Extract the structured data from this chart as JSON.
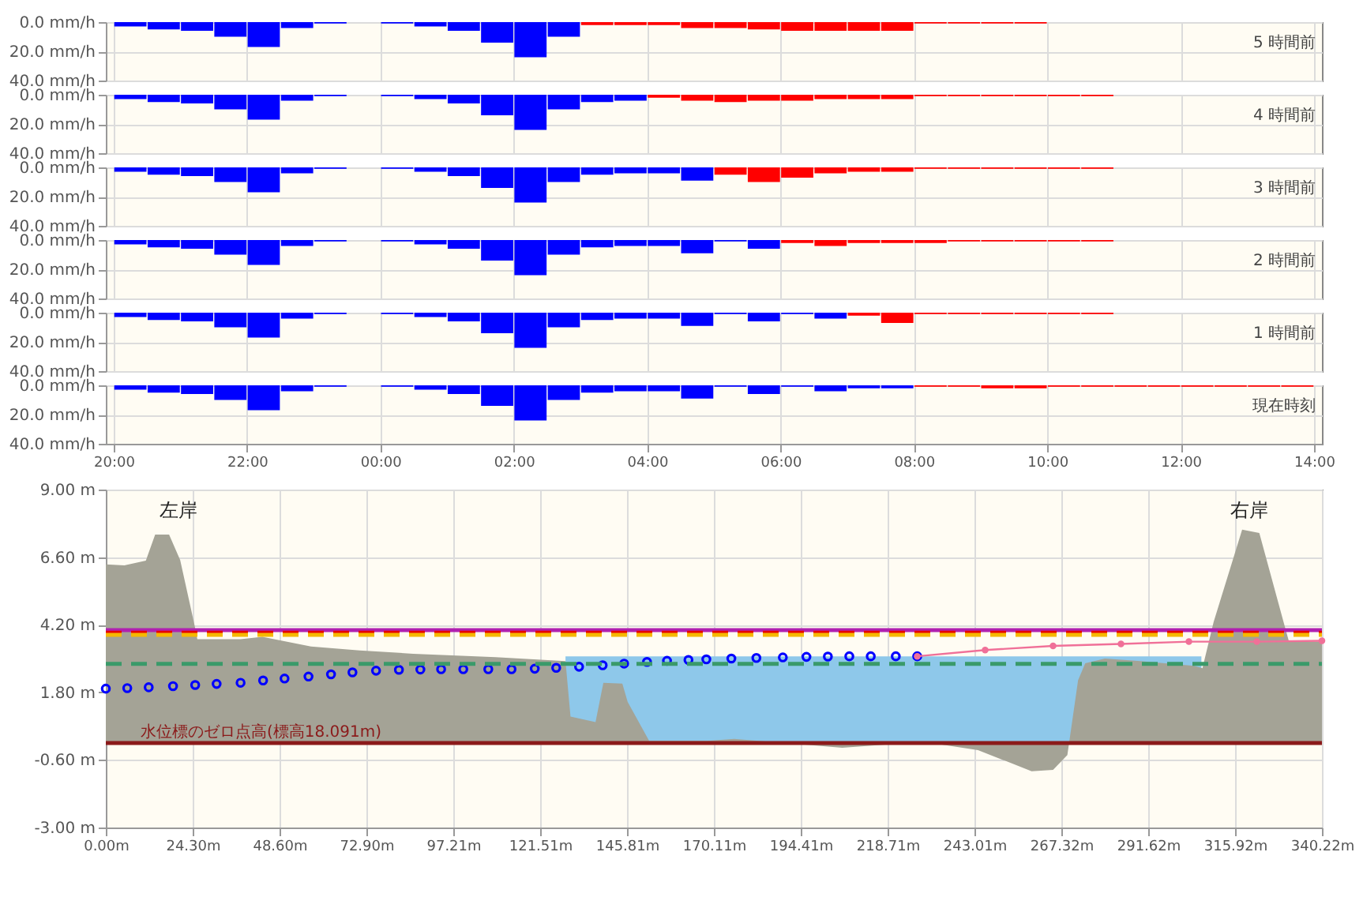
{
  "chart_data": [
    {
      "type": "bar",
      "title": "5 時間前",
      "tick_labels": "y",
      "grid": true,
      "xlim": [
        "2000-01-01T20:00",
        "2000-01-02T14:00"
      ],
      "xticks": [
        {
          "value": "2000-01-01T20:00",
          "label": null
        },
        {
          "value": "2000-01-01T22:00",
          "label": null
        },
        {
          "value": "2000-01-02T00:00",
          "label": null
        },
        {
          "value": "2000-01-02T02:00",
          "label": null
        },
        {
          "value": "2000-01-02T04:00",
          "label": null
        },
        {
          "value": "2000-01-02T06:00",
          "label": null
        },
        {
          "value": "2000-01-02T08:00",
          "label": null
        },
        {
          "value": "2000-01-02T10:00",
          "label": null
        },
        {
          "value": "2000-01-02T12:00",
          "label": null
        },
        {
          "value": "2000-01-02T14:00",
          "label": null
        }
      ],
      "ylim": [
        40,
        0
      ],
      "yticks": [
        {
          "value": 0,
          "label": "0.0 mm/h"
        },
        {
          "value": 20,
          "label": "20.0 mm/h"
        },
        {
          "value": 40,
          "label": "40.0 mm/h"
        }
      ],
      "x": [
        "2000-01-01T20:15",
        "2000-01-01T20:45",
        "2000-01-01T21:15",
        "2000-01-01T21:45",
        "2000-01-01T22:15",
        "2000-01-01T22:45",
        "2000-01-01T23:15",
        "2000-01-01T23:45",
        "2000-01-02T00:15",
        "2000-01-02T00:45",
        "2000-01-02T01:15",
        "2000-01-02T01:45",
        "2000-01-02T02:15",
        "2000-01-02T02:45",
        "2000-01-02T03:15",
        "2000-01-02T03:45",
        "2000-01-02T04:15",
        "2000-01-02T04:45",
        "2000-01-02T05:15",
        "2000-01-02T05:45",
        "2000-01-02T06:15",
        "2000-01-02T06:45",
        "2000-01-02T07:15",
        "2000-01-02T07:45",
        "2000-01-02T08:15",
        "2000-01-02T08:45",
        "2000-01-02T09:15",
        "2000-01-02T09:45"
      ],
      "series": [
        {
          "color": "#0000ff",
          "values": [
            3,
            5,
            6,
            10,
            17,
            4,
            1,
            0,
            1,
            3,
            6,
            14,
            24,
            10,
            null,
            null,
            null,
            null,
            null,
            null,
            null,
            null,
            null,
            null,
            null,
            null,
            null,
            null
          ]
        },
        {
          "color": "#ff0000",
          "values": [
            null,
            null,
            null,
            null,
            null,
            null,
            null,
            null,
            null,
            null,
            null,
            null,
            null,
            null,
            2,
            2,
            2,
            4,
            4,
            5,
            6,
            6,
            6,
            6,
            1,
            1,
            1,
            1
          ]
        }
      ]
    },
    {
      "type": "bar",
      "title": "4 時間前",
      "tick_labels": "y",
      "grid": true,
      "xlim": [
        "2000-01-01T20:00",
        "2000-01-02T14:00"
      ],
      "xticks": [
        {
          "value": "2000-01-01T20:00",
          "label": null
        },
        {
          "value": "2000-01-01T22:00",
          "label": null
        },
        {
          "value": "2000-01-02T00:00",
          "label": null
        },
        {
          "value": "2000-01-02T02:00",
          "label": null
        },
        {
          "value": "2000-01-02T04:00",
          "label": null
        },
        {
          "value": "2000-01-02T06:00",
          "label": null
        },
        {
          "value": "2000-01-02T08:00",
          "label": null
        },
        {
          "value": "2000-01-02T10:00",
          "label": null
        },
        {
          "value": "2000-01-02T12:00",
          "label": null
        },
        {
          "value": "2000-01-02T14:00",
          "label": null
        }
      ],
      "ylim": [
        40,
        0
      ],
      "yticks": [
        {
          "value": 0,
          "label": "0.0 mm/h"
        },
        {
          "value": 20,
          "label": "20.0 mm/h"
        },
        {
          "value": 40,
          "label": "40.0 mm/h"
        }
      ],
      "x": [
        "2000-01-01T20:15",
        "2000-01-01T20:45",
        "2000-01-01T21:15",
        "2000-01-01T21:45",
        "2000-01-01T22:15",
        "2000-01-01T22:45",
        "2000-01-01T23:15",
        "2000-01-01T23:45",
        "2000-01-02T00:15",
        "2000-01-02T00:45",
        "2000-01-02T01:15",
        "2000-01-02T01:45",
        "2000-01-02T02:15",
        "2000-01-02T02:45",
        "2000-01-02T03:15",
        "2000-01-02T03:45",
        "2000-01-02T04:15",
        "2000-01-02T04:45",
        "2000-01-02T05:15",
        "2000-01-02T05:45",
        "2000-01-02T06:15",
        "2000-01-02T06:45",
        "2000-01-02T07:15",
        "2000-01-02T07:45",
        "2000-01-02T08:15",
        "2000-01-02T08:45",
        "2000-01-02T09:15",
        "2000-01-02T09:45",
        "2000-01-02T10:15",
        "2000-01-02T10:45"
      ],
      "series": [
        {
          "color": "#0000ff",
          "values": [
            3,
            5,
            6,
            10,
            17,
            4,
            1,
            0,
            1,
            3,
            6,
            14,
            24,
            10,
            5,
            4,
            null,
            null,
            null,
            null,
            null,
            null,
            null,
            null,
            null,
            null,
            null,
            null,
            null,
            null
          ]
        },
        {
          "color": "#ff0000",
          "values": [
            null,
            null,
            null,
            null,
            null,
            null,
            null,
            null,
            null,
            null,
            null,
            null,
            null,
            null,
            null,
            null,
            2,
            4,
            5,
            4,
            4,
            3,
            3,
            3,
            1,
            1,
            1,
            1,
            1,
            1
          ]
        }
      ]
    },
    {
      "type": "bar",
      "title": "3 時間前",
      "tick_labels": "y",
      "grid": true,
      "xlim": [
        "2000-01-01T20:00",
        "2000-01-02T14:00"
      ],
      "xticks": [
        {
          "value": "2000-01-01T20:00",
          "label": null
        },
        {
          "value": "2000-01-01T22:00",
          "label": null
        },
        {
          "value": "2000-01-02T00:00",
          "label": null
        },
        {
          "value": "2000-01-02T02:00",
          "label": null
        },
        {
          "value": "2000-01-02T04:00",
          "label": null
        },
        {
          "value": "2000-01-02T06:00",
          "label": null
        },
        {
          "value": "2000-01-02T08:00",
          "label": null
        },
        {
          "value": "2000-01-02T10:00",
          "label": null
        },
        {
          "value": "2000-01-02T12:00",
          "label": null
        },
        {
          "value": "2000-01-02T14:00",
          "label": null
        }
      ],
      "ylim": [
        40,
        0
      ],
      "yticks": [
        {
          "value": 0,
          "label": "0.0 mm/h"
        },
        {
          "value": 20,
          "label": "20.0 mm/h"
        },
        {
          "value": 40,
          "label": "40.0 mm/h"
        }
      ],
      "x": [
        "2000-01-01T20:15",
        "2000-01-01T20:45",
        "2000-01-01T21:15",
        "2000-01-01T21:45",
        "2000-01-01T22:15",
        "2000-01-01T22:45",
        "2000-01-01T23:15",
        "2000-01-01T23:45",
        "2000-01-02T00:15",
        "2000-01-02T00:45",
        "2000-01-02T01:15",
        "2000-01-02T01:45",
        "2000-01-02T02:15",
        "2000-01-02T02:45",
        "2000-01-02T03:15",
        "2000-01-02T03:45",
        "2000-01-02T04:15",
        "2000-01-02T04:45",
        "2000-01-02T05:15",
        "2000-01-02T05:45",
        "2000-01-02T06:15",
        "2000-01-02T06:45",
        "2000-01-02T07:15",
        "2000-01-02T07:45",
        "2000-01-02T08:15",
        "2000-01-02T08:45",
        "2000-01-02T09:15",
        "2000-01-02T09:45",
        "2000-01-02T10:15",
        "2000-01-02T10:45"
      ],
      "series": [
        {
          "color": "#0000ff",
          "values": [
            3,
            5,
            6,
            10,
            17,
            4,
            1,
            0,
            1,
            3,
            6,
            14,
            24,
            10,
            5,
            4,
            4,
            9,
            null,
            null,
            null,
            null,
            null,
            null,
            null,
            null,
            null,
            null,
            null,
            null
          ]
        },
        {
          "color": "#ff0000",
          "values": [
            null,
            null,
            null,
            null,
            null,
            null,
            null,
            null,
            null,
            null,
            null,
            null,
            null,
            null,
            null,
            null,
            null,
            null,
            5,
            10,
            7,
            4,
            3,
            3,
            1,
            1,
            1,
            1,
            1,
            1
          ]
        }
      ]
    },
    {
      "type": "bar",
      "title": "2 時間前",
      "tick_labels": "y",
      "grid": true,
      "xlim": [
        "2000-01-01T20:00",
        "2000-01-02T14:00"
      ],
      "xticks": [
        {
          "value": "2000-01-01T20:00",
          "label": null
        },
        {
          "value": "2000-01-01T22:00",
          "label": null
        },
        {
          "value": "2000-01-02T00:00",
          "label": null
        },
        {
          "value": "2000-01-02T02:00",
          "label": null
        },
        {
          "value": "2000-01-02T04:00",
          "label": null
        },
        {
          "value": "2000-01-02T06:00",
          "label": null
        },
        {
          "value": "2000-01-02T08:00",
          "label": null
        },
        {
          "value": "2000-01-02T10:00",
          "label": null
        },
        {
          "value": "2000-01-02T12:00",
          "label": null
        },
        {
          "value": "2000-01-02T14:00",
          "label": null
        }
      ],
      "ylim": [
        40,
        0
      ],
      "yticks": [
        {
          "value": 0,
          "label": "0.0 mm/h"
        },
        {
          "value": 20,
          "label": "20.0 mm/h"
        },
        {
          "value": 40,
          "label": "40.0 mm/h"
        }
      ],
      "x": [
        "2000-01-01T20:15",
        "2000-01-01T20:45",
        "2000-01-01T21:15",
        "2000-01-01T21:45",
        "2000-01-01T22:15",
        "2000-01-01T22:45",
        "2000-01-01T23:15",
        "2000-01-01T23:45",
        "2000-01-02T00:15",
        "2000-01-02T00:45",
        "2000-01-02T01:15",
        "2000-01-02T01:45",
        "2000-01-02T02:15",
        "2000-01-02T02:45",
        "2000-01-02T03:15",
        "2000-01-02T03:45",
        "2000-01-02T04:15",
        "2000-01-02T04:45",
        "2000-01-02T05:15",
        "2000-01-02T05:45",
        "2000-01-02T06:15",
        "2000-01-02T06:45",
        "2000-01-02T07:15",
        "2000-01-02T07:45",
        "2000-01-02T08:15",
        "2000-01-02T08:45",
        "2000-01-02T09:15",
        "2000-01-02T09:45",
        "2000-01-02T10:15",
        "2000-01-02T10:45"
      ],
      "series": [
        {
          "color": "#0000ff",
          "values": [
            3,
            5,
            6,
            10,
            17,
            4,
            1,
            0,
            1,
            3,
            6,
            14,
            24,
            10,
            5,
            4,
            4,
            9,
            1,
            6,
            null,
            null,
            null,
            null,
            null,
            null,
            null,
            null,
            null,
            null
          ]
        },
        {
          "color": "#ff0000",
          "values": [
            null,
            null,
            null,
            null,
            null,
            null,
            null,
            null,
            null,
            null,
            null,
            null,
            null,
            null,
            null,
            null,
            null,
            null,
            null,
            null,
            2,
            4,
            2,
            2,
            2,
            1,
            1,
            1,
            1,
            1
          ]
        }
      ]
    },
    {
      "type": "bar",
      "title": "1 時間前",
      "tick_labels": "y",
      "grid": true,
      "xlim": [
        "2000-01-01T20:00",
        "2000-01-02T14:00"
      ],
      "xticks": [
        {
          "value": "2000-01-01T20:00",
          "label": null
        },
        {
          "value": "2000-01-01T22:00",
          "label": null
        },
        {
          "value": "2000-01-02T00:00",
          "label": null
        },
        {
          "value": "2000-01-02T02:00",
          "label": null
        },
        {
          "value": "2000-01-02T04:00",
          "label": null
        },
        {
          "value": "2000-01-02T06:00",
          "label": null
        },
        {
          "value": "2000-01-02T08:00",
          "label": null
        },
        {
          "value": "2000-01-02T10:00",
          "label": null
        },
        {
          "value": "2000-01-02T12:00",
          "label": null
        },
        {
          "value": "2000-01-02T14:00",
          "label": null
        }
      ],
      "ylim": [
        40,
        0
      ],
      "yticks": [
        {
          "value": 0,
          "label": "0.0 mm/h"
        },
        {
          "value": 20,
          "label": "20.0 mm/h"
        },
        {
          "value": 40,
          "label": "40.0 mm/h"
        }
      ],
      "x": [
        "2000-01-01T20:15",
        "2000-01-01T20:45",
        "2000-01-01T21:15",
        "2000-01-01T21:45",
        "2000-01-01T22:15",
        "2000-01-01T22:45",
        "2000-01-01T23:15",
        "2000-01-01T23:45",
        "2000-01-02T00:15",
        "2000-01-02T00:45",
        "2000-01-02T01:15",
        "2000-01-02T01:45",
        "2000-01-02T02:15",
        "2000-01-02T02:45",
        "2000-01-02T03:15",
        "2000-01-02T03:45",
        "2000-01-02T04:15",
        "2000-01-02T04:45",
        "2000-01-02T05:15",
        "2000-01-02T05:45",
        "2000-01-02T06:15",
        "2000-01-02T06:45",
        "2000-01-02T07:15",
        "2000-01-02T07:45",
        "2000-01-02T08:15",
        "2000-01-02T08:45",
        "2000-01-02T09:15",
        "2000-01-02T09:45",
        "2000-01-02T10:15",
        "2000-01-02T10:45"
      ],
      "series": [
        {
          "color": "#0000ff",
          "values": [
            3,
            5,
            6,
            10,
            17,
            4,
            1,
            0,
            1,
            3,
            6,
            14,
            24,
            10,
            5,
            4,
            4,
            9,
            1,
            6,
            1,
            4,
            null,
            null,
            null,
            null,
            null,
            null,
            null,
            null
          ]
        },
        {
          "color": "#ff0000",
          "values": [
            null,
            null,
            null,
            null,
            null,
            null,
            null,
            null,
            null,
            null,
            null,
            null,
            null,
            null,
            null,
            null,
            null,
            null,
            null,
            null,
            null,
            null,
            2,
            7,
            1,
            1,
            1,
            1,
            1,
            1
          ]
        }
      ]
    },
    {
      "type": "bar",
      "title": "現在時刻",
      "grid": true,
      "xlim": [
        "2000-01-01T20:00",
        "2000-01-02T14:00"
      ],
      "xticks": [
        {
          "value": "2000-01-01T20:00",
          "label": "20:00"
        },
        {
          "value": "2000-01-01T22:00",
          "label": "22:00"
        },
        {
          "value": "2000-01-02T00:00",
          "label": "00:00"
        },
        {
          "value": "2000-01-02T02:00",
          "label": "02:00"
        },
        {
          "value": "2000-01-02T04:00",
          "label": "04:00"
        },
        {
          "value": "2000-01-02T06:00",
          "label": "06:00"
        },
        {
          "value": "2000-01-02T08:00",
          "label": "08:00"
        },
        {
          "value": "2000-01-02T10:00",
          "label": "10:00"
        },
        {
          "value": "2000-01-02T12:00",
          "label": "12:00"
        },
        {
          "value": "2000-01-02T14:00",
          "label": "14:00"
        }
      ],
      "ylim": [
        40,
        0
      ],
      "yticks": [
        {
          "value": 0,
          "label": "0.0 mm/h"
        },
        {
          "value": 20,
          "label": "20.0 mm/h"
        },
        {
          "value": 40,
          "label": "40.0 mm/h"
        }
      ],
      "x": [
        "2000-01-01T20:15",
        "2000-01-01T20:45",
        "2000-01-01T21:15",
        "2000-01-01T21:45",
        "2000-01-01T22:15",
        "2000-01-01T22:45",
        "2000-01-01T23:15",
        "2000-01-01T23:45",
        "2000-01-02T00:15",
        "2000-01-02T00:45",
        "2000-01-02T01:15",
        "2000-01-02T01:45",
        "2000-01-02T02:15",
        "2000-01-02T02:45",
        "2000-01-02T03:15",
        "2000-01-02T03:45",
        "2000-01-02T04:15",
        "2000-01-02T04:45",
        "2000-01-02T05:15",
        "2000-01-02T05:45",
        "2000-01-02T06:15",
        "2000-01-02T06:45",
        "2000-01-02T07:15",
        "2000-01-02T07:45",
        "2000-01-02T08:15",
        "2000-01-02T08:45",
        "2000-01-02T09:15",
        "2000-01-02T09:45",
        "2000-01-02T10:15",
        "2000-01-02T10:45",
        "2000-01-02T11:15",
        "2000-01-02T11:45",
        "2000-01-02T12:15",
        "2000-01-02T12:45",
        "2000-01-02T13:15",
        "2000-01-02T13:45"
      ],
      "series": [
        {
          "color": "#0000ff",
          "values": [
            3,
            5,
            6,
            10,
            17,
            4,
            1,
            0,
            1,
            3,
            6,
            14,
            24,
            10,
            5,
            4,
            4,
            9,
            1,
            6,
            1,
            4,
            2,
            2,
            null,
            null,
            null,
            null,
            null,
            null,
            null,
            null,
            null,
            null,
            null,
            null
          ]
        },
        {
          "color": "#ff0000",
          "values": [
            null,
            null,
            null,
            null,
            null,
            null,
            null,
            null,
            null,
            null,
            null,
            null,
            null,
            null,
            null,
            null,
            null,
            null,
            null,
            null,
            null,
            null,
            null,
            null,
            1,
            1,
            2,
            2,
            1,
            1,
            1,
            1,
            1,
            1,
            1,
            1
          ]
        }
      ]
    },
    {
      "type": "area",
      "grid": true,
      "xlim": [
        0,
        340.22
      ],
      "xticks": [
        {
          "value": 0,
          "label": "0.00m"
        },
        {
          "value": 24.3,
          "label": "24.30m"
        },
        {
          "value": 48.6,
          "label": "48.60m"
        },
        {
          "value": 72.9,
          "label": "72.90m"
        },
        {
          "value": 97.21,
          "label": "97.21m"
        },
        {
          "value": 121.51,
          "label": "121.51m"
        },
        {
          "value": 145.81,
          "label": "145.81m"
        },
        {
          "value": 170.11,
          "label": "170.11m"
        },
        {
          "value": 194.41,
          "label": "194.41m"
        },
        {
          "value": 218.71,
          "label": "218.71m"
        },
        {
          "value": 243.01,
          "label": "243.01m"
        },
        {
          "value": 267.32,
          "label": "267.32m"
        },
        {
          "value": 291.62,
          "label": "291.62m"
        },
        {
          "value": 315.92,
          "label": "315.92m"
        },
        {
          "value": 340.22,
          "label": "340.22m"
        }
      ],
      "ylim": [
        -3,
        9
      ],
      "yticks": [
        {
          "value": -3,
          "label": "-3.00 m"
        },
        {
          "value": -0.6,
          "label": "-0.60 m"
        },
        {
          "value": 1.8,
          "label": "1.80 m"
        },
        {
          "value": 4.2,
          "label": "4.20 m"
        },
        {
          "value": 6.6,
          "label": "6.60 m"
        },
        {
          "value": 9,
          "label": "9.00 m"
        }
      ],
      "series": [
        {
          "type": "area",
          "color": "#8ec8ea",
          "x": [
            128.6,
            306.5
          ],
          "values": [
            3.08,
            3.08
          ]
        },
        {
          "type": "area",
          "color": "#a4a396",
          "x": [
            0,
            5.2,
            11.2,
            13.8,
            17.7,
            20.8,
            24.8,
            25.6,
            37.7,
            43.8,
            57.4,
            71,
            86,
            109,
            128.6,
            130,
            137,
            139.2,
            144.5,
            146,
            152,
            168.2,
            175.8,
            206,
            228.8,
            244,
            259,
            265,
            269,
            272,
            274,
            279.5,
            289.4,
            304.5,
            306.8,
            309.9,
            317.9,
            322.7,
            329.5,
            331,
            340.22
          ],
          "values": [
            6.34,
            6.31,
            6.48,
            7.4,
            7.4,
            6.5,
            4.2,
            3.69,
            3.69,
            3.77,
            3.43,
            3.29,
            3.17,
            3.05,
            2.91,
            0.94,
            0.74,
            2.14,
            2.11,
            1.46,
            0.08,
            0.08,
            0.15,
            -0.17,
            0.04,
            -0.25,
            -1.0,
            -0.95,
            -0.43,
            2.23,
            2.83,
            3.0,
            2.91,
            2.74,
            2.66,
            4.29,
            7.58,
            7.46,
            4.29,
            3.6,
            3.6
          ]
        },
        {
          "type": "scatter",
          "color": "#0000ff",
          "marker": "circle",
          "x": [
            0,
            6,
            12,
            18.8,
            25,
            31,
            37.7,
            44,
            50,
            56.7,
            63,
            69,
            75.6,
            82,
            88,
            93.8,
            100,
            107,
            113.5,
            120,
            126,
            132.4,
            139,
            145,
            151.4,
            157,
            163,
            168,
            175,
            182,
            189.4,
            196,
            202,
            208,
            214,
            221,
            227
          ],
          "values": [
            1.93,
            1.95,
            1.98,
            2.02,
            2.06,
            2.1,
            2.14,
            2.22,
            2.29,
            2.36,
            2.44,
            2.51,
            2.57,
            2.6,
            2.61,
            2.62,
            2.62,
            2.62,
            2.62,
            2.64,
            2.67,
            2.71,
            2.76,
            2.82,
            2.88,
            2.92,
            2.95,
            2.97,
            3.0,
            3.02,
            3.04,
            3.06,
            3.07,
            3.08,
            3.08,
            3.08,
            3.08
          ]
        },
        {
          "type": "line",
          "color": "#f07098",
          "marker": "circle",
          "x": [
            227,
            246,
            265,
            284,
            303,
            322,
            340.22
          ],
          "values": [
            3.08,
            3.3,
            3.45,
            3.52,
            3.6,
            3.6,
            3.63
          ]
        }
      ],
      "ref_lines": [
        {
          "axis": "y",
          "value": 4.01,
          "color": "#b020b0",
          "line_style": "solid"
        },
        {
          "axis": "y",
          "value": 3.92,
          "color": "#e60000",
          "line_style": "dashed"
        },
        {
          "axis": "y",
          "value": 3.84,
          "color": "#f5b800",
          "line_style": "dashed"
        },
        {
          "axis": "y",
          "value": 2.81,
          "color": "#3a9a6a",
          "line_style": "dashed"
        },
        {
          "axis": "y",
          "value": 0,
          "color": "#8b1a1a",
          "line_style": "solid",
          "label": "水位標のゼロ点高(標高18.091m)"
        }
      ],
      "annotations": [
        "左岸",
        "右岸"
      ]
    }
  ]
}
